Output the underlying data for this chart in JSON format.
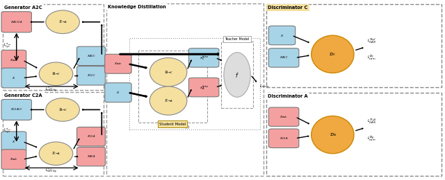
{
  "bg_color": "#ffffff",
  "colors": {
    "pink": "#F5A0A0",
    "blue": "#A8D4E8",
    "yellow": "#F5E0A0",
    "orange": "#F0A840",
    "gray": "#C8C8C8",
    "white": "#ffffff"
  },
  "layout": {
    "gen_a2c": [
      0.005,
      0.02,
      0.228,
      0.965
    ],
    "gen_c2a_inner": [
      0.005,
      0.02,
      0.228,
      0.47
    ],
    "knowledge": [
      0.238,
      0.02,
      0.355,
      0.965
    ],
    "disc_c": [
      0.598,
      0.515,
      0.396,
      0.465
    ],
    "disc_a": [
      0.598,
      0.02,
      0.396,
      0.465
    ]
  }
}
